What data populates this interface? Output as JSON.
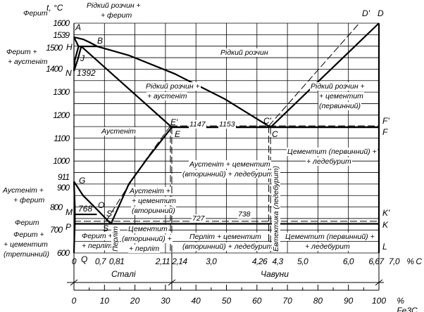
{
  "axis": {
    "t_label": "t, °C",
    "c_unit": "% C",
    "fe3c_unit": "% Fe3C",
    "t_ticks": [
      "1600",
      "1539",
      "1500",
      "1400",
      "1300",
      "1200",
      "1100",
      "1000",
      "911",
      "900",
      "800",
      "700",
      "600"
    ],
    "c_ticks": [
      "0",
      "0,7",
      "0,81",
      "2,11",
      "2,14",
      "3,0",
      "4,26",
      "4,3",
      "5,0",
      "6,0",
      "6,67",
      "7,0"
    ],
    "fe3c_ticks": [
      "0",
      "10",
      "20",
      "30",
      "40",
      "50",
      "60",
      "70",
      "80",
      "90",
      "100"
    ],
    "steels": "Сталі",
    "cast_irons": "Чавуни"
  },
  "points": {
    "A": "A",
    "B": "B",
    "H": "H",
    "J": "J",
    "N": "N",
    "E1": "E'",
    "E": "E",
    "C1": "C'",
    "C": "C",
    "F1": "F'",
    "F": "F",
    "D1": "D'",
    "D": "D",
    "G": "G",
    "O": "O",
    "M": "M",
    "S1": "S'",
    "S": "S",
    "P": "P",
    "Q": "Q",
    "K1": "K'",
    "K": "K",
    "L": "L"
  },
  "temps": {
    "t1392": "1392",
    "t1147": "1147",
    "t1153": "1153",
    "t768": "768",
    "t727": "727",
    "t738": "738"
  },
  "regions": {
    "ferrite_top": "Ферит",
    "liq_ferrite": [
      "Рідкий розчин +",
      "+ ферит"
    ],
    "liquid": "Рідкий розчин",
    "ferrite_austenite": [
      "Ферит +",
      "+ аустеніт"
    ],
    "liq_austenite": [
      "Рідкий розчин +",
      "+ аустеніт"
    ],
    "liq_cementite": [
      "Рідкий розчин +",
      "+ цементит",
      "(первинний)"
    ],
    "austenite": "Аустеніт",
    "aust_cem_led": [
      "Аустеніт + цементит",
      "(вторинний) + ледебурит"
    ],
    "cem_led_upper": [
      "Цементит (первинний) +",
      "+ ледебурит"
    ],
    "aust_ferrite": [
      "Аустеніт +",
      "+ ферит"
    ],
    "aust_cem": [
      "Аустеніт +",
      "+ цементит",
      "(вторинний)"
    ],
    "ferrite": "Ферит",
    "ferrite_cem3": [
      "Ферит +",
      "+ цементит",
      "(третинний)"
    ],
    "ferrite_pearlite": [
      "Ферит +",
      "+ перліт"
    ],
    "pearlite": "Перліт",
    "cem_pearlite": [
      "Цементит",
      "(вторинний) +",
      "+ перліт"
    ],
    "pearl_cem_led": [
      "Перліт + цементит",
      "(вторинний) + ледебурит"
    ],
    "eutectic": "Евтектика (ледебурит)",
    "cem_led_lower": [
      "Цементит (первинний) +",
      "+ ледебурит"
    ]
  },
  "chart_data": {
    "type": "phase-diagram",
    "xlim_c": [
      0,
      6.67
    ],
    "ylim_t": [
      600,
      1600
    ],
    "solid_lines": [
      [
        [
          0,
          1539
        ],
        [
          0.2,
          1530
        ],
        [
          0.35,
          1516
        ],
        [
          0.51,
          1499
        ]
      ],
      [
        [
          0,
          1539
        ],
        [
          0.1,
          1499
        ]
      ],
      [
        [
          0.1,
          1499
        ],
        [
          0.51,
          1499
        ]
      ],
      [
        [
          0.1,
          1499
        ],
        [
          0.02,
          1440
        ],
        [
          0,
          1392
        ]
      ],
      [
        [
          0.16,
          1499
        ],
        [
          0.08,
          1440
        ],
        [
          0,
          1392
        ]
      ],
      [
        [
          0.16,
          1499
        ],
        [
          2.14,
          1147
        ]
      ],
      [
        [
          0.51,
          1499
        ],
        [
          1.2,
          1460
        ],
        [
          2.2,
          1380
        ],
        [
          3.3,
          1270
        ],
        [
          4.3,
          1147
        ]
      ],
      [
        [
          4.3,
          1147
        ],
        [
          6.67,
          1600
        ]
      ],
      [
        [
          2.14,
          1147
        ],
        [
          6.67,
          1147
        ]
      ],
      [
        [
          2.14,
          1147
        ],
        [
          1.6,
          1010
        ],
        [
          1.2,
          900
        ],
        [
          0.81,
          727
        ]
      ],
      [
        [
          0,
          911
        ],
        [
          0.2,
          850
        ],
        [
          0.5,
          790
        ],
        [
          0.81,
          727
        ]
      ],
      [
        [
          0,
          911
        ],
        [
          0.02,
          800
        ],
        [
          0.02,
          727
        ]
      ],
      [
        [
          0.02,
          727
        ],
        [
          6.67,
          727
        ]
      ],
      [
        [
          0.02,
          727
        ],
        [
          0.01,
          670
        ],
        [
          0,
          600
        ]
      ],
      [
        [
          0,
          768
        ],
        [
          0.5,
          768
        ]
      ],
      [
        [
          6.67,
          1600
        ],
        [
          6.67,
          600
        ]
      ]
    ],
    "dashed_lines": [
      [
        [
          2.11,
          1153
        ],
        [
          6.67,
          1153
        ]
      ],
      [
        [
          2.11,
          1153
        ],
        [
          1.55,
          1000
        ],
        [
          1.15,
          880
        ],
        [
          0.7,
          738
        ]
      ],
      [
        [
          4.26,
          1153
        ],
        [
          6.24,
          1600
        ]
      ],
      [
        [
          0,
          738
        ],
        [
          6.67,
          738
        ]
      ],
      [
        [
          2.11,
          1153
        ],
        [
          2.11,
          600
        ]
      ],
      [
        [
          2.14,
          1147
        ],
        [
          2.14,
          600
        ]
      ],
      [
        [
          4.26,
          1153
        ],
        [
          4.26,
          600
        ]
      ],
      [
        [
          4.3,
          1147
        ],
        [
          4.3,
          600
        ]
      ]
    ]
  },
  "colors": {
    "line": "#000000",
    "grid": "#000000"
  }
}
